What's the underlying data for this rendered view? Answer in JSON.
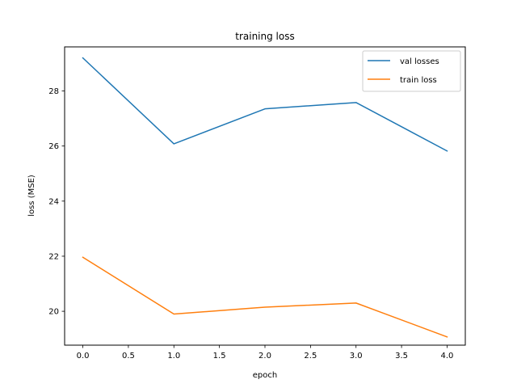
{
  "chart_data": {
    "type": "line",
    "title": "training loss",
    "xlabel": "epoch",
    "ylabel": "loss (MSE)",
    "x": [
      0,
      1,
      2,
      3,
      4
    ],
    "xlim": [
      -0.2,
      4.2
    ],
    "ylim": [
      18.77,
      29.6
    ],
    "xticks": [
      0.0,
      0.5,
      1.0,
      1.5,
      2.0,
      2.5,
      3.0,
      3.5,
      4.0
    ],
    "xtick_labels": [
      "0.0",
      "0.5",
      "1.0",
      "1.5",
      "2.0",
      "2.5",
      "3.0",
      "3.5",
      "4.0"
    ],
    "yticks": [
      20,
      22,
      24,
      26,
      28
    ],
    "ytick_labels": [
      "20",
      "22",
      "24",
      "26",
      "28"
    ],
    "grid": false,
    "legend_position": "top-right",
    "series": [
      {
        "name": "val losses",
        "color": "#1f77b4",
        "values": [
          29.2,
          26.08,
          27.35,
          27.58,
          25.82
        ]
      },
      {
        "name": "train loss",
        "color": "#ff7f0e",
        "values": [
          21.96,
          19.9,
          20.15,
          20.3,
          19.07
        ]
      }
    ]
  }
}
